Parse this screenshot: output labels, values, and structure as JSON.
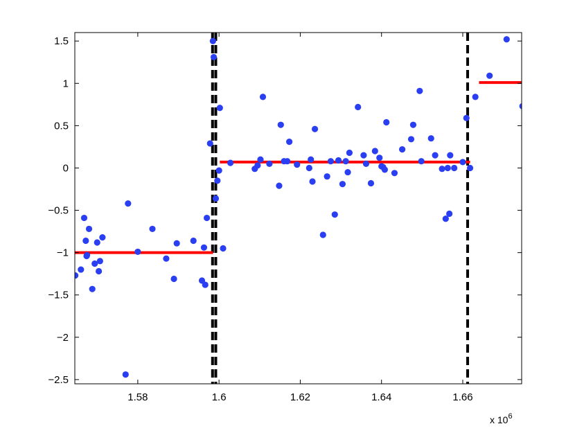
{
  "chart_data": {
    "type": "scatter",
    "title": "",
    "xlabel": "",
    "ylabel": "",
    "x_multiplier_label": "x 10",
    "x_multiplier_exponent": "6",
    "xlim": [
      1.5645,
      1.6745
    ],
    "ylim": [
      -2.55,
      1.6
    ],
    "x_ticks": [
      1.58,
      1.6,
      1.62,
      1.64,
      1.66
    ],
    "x_tick_labels": [
      "1.58",
      "1.6",
      "1.62",
      "1.64",
      "1.66"
    ],
    "y_ticks": [
      1.5,
      1,
      0.5,
      0,
      -0.5,
      -1,
      -1.5,
      -2,
      -2.5
    ],
    "y_tick_labels": [
      "1.5",
      "1",
      "0.5",
      "0",
      "−0.5",
      "−1",
      "−1.5",
      "−2",
      "−2.5"
    ],
    "grid": false,
    "points": {
      "color": "#2b3ff2",
      "x": [
        1.5646,
        1.566,
        1.5668,
        1.5672,
        1.5674,
        1.5675,
        1.568,
        1.5688,
        1.5694,
        1.57,
        1.5704,
        1.5707,
        1.5713,
        1.577,
        1.5776,
        1.58,
        1.5836,
        1.587,
        1.5889,
        1.5896,
        1.5937,
        1.5958,
        1.5963,
        1.5966,
        1.597,
        1.5978,
        1.5985,
        1.5987,
        1.5992,
        1.5996,
        1.6,
        1.6002,
        1.601,
        1.6028,
        1.6088,
        1.6095,
        1.6102,
        1.6108,
        1.6124,
        1.6148,
        1.6152,
        1.616,
        1.6168,
        1.6173,
        1.6192,
        1.6222,
        1.6226,
        1.623,
        1.6236,
        1.6256,
        1.6266,
        1.6275,
        1.6285,
        1.6294,
        1.6304,
        1.6312,
        1.6317,
        1.6321,
        1.6342,
        1.6356,
        1.6362,
        1.6374,
        1.6384,
        1.6395,
        1.64,
        1.6404,
        1.6408,
        1.6412,
        1.6432,
        1.6451,
        1.6473,
        1.6478,
        1.6494,
        1.6498,
        1.6522,
        1.6532,
        1.6549,
        1.6558,
        1.6563,
        1.6567,
        1.6569,
        1.6579,
        1.66,
        1.6609,
        1.6618,
        1.6631,
        1.6666,
        1.6708,
        1.6747
      ],
      "y": [
        -1.27,
        -1.2,
        -0.59,
        -0.86,
        -1.04,
        -1.03,
        -0.72,
        -1.43,
        -1.13,
        -0.88,
        -1.22,
        -1.1,
        -0.82,
        -2.44,
        -0.42,
        -0.99,
        -0.72,
        -1.07,
        -1.31,
        -0.89,
        -0.86,
        -1.33,
        -0.94,
        -1.38,
        -0.59,
        0.29,
        1.5,
        1.31,
        -0.36,
        -0.15,
        -0.03,
        0.71,
        -0.95,
        0.06,
        -0.01,
        0.03,
        0.1,
        0.84,
        0.05,
        -0.21,
        0.51,
        0.08,
        0.08,
        0.31,
        0.04,
        0.0,
        0.1,
        -0.16,
        0.46,
        -0.79,
        -0.1,
        0.08,
        -0.55,
        0.09,
        -0.19,
        0.08,
        -0.05,
        0.18,
        0.72,
        0.15,
        0.05,
        -0.18,
        0.2,
        0.12,
        0.02,
        0.01,
        -0.02,
        0.54,
        -0.06,
        0.22,
        0.34,
        0.51,
        0.91,
        0.08,
        0.35,
        0.15,
        -0.01,
        -0.6,
        0.0,
        -0.54,
        0.15,
        0.0,
        0.07,
        0.59,
        0.0,
        0.84,
        1.09,
        1.52,
        0.73
      ]
    },
    "segment_lines": {
      "color": "#ff0000",
      "segments": [
        {
          "x": [
            1.5645,
            1.5985
          ],
          "y": -1.0
        },
        {
          "x": [
            1.6002,
            1.6618
          ],
          "y": 0.07
        },
        {
          "x": [
            1.664,
            1.6745
          ],
          "y": 1.01
        }
      ]
    },
    "vertical_lines": {
      "color": "#000000",
      "style": "dashed",
      "x": [
        1.5984,
        1.5992,
        1.6612
      ]
    }
  }
}
